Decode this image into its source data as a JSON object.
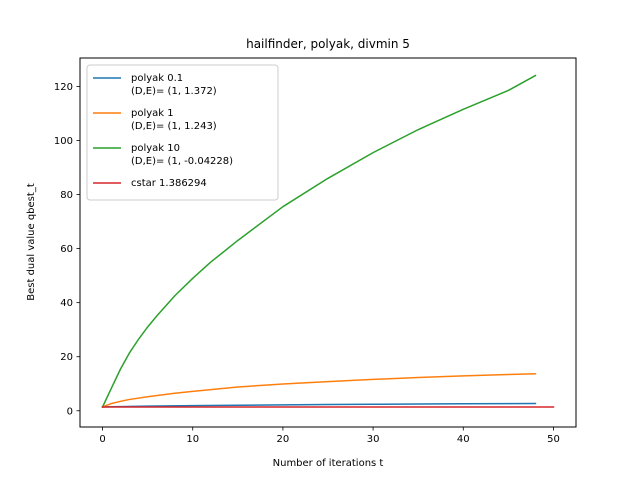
{
  "chart_data": {
    "type": "line",
    "title": "hailfinder, polyak, divmin 5",
    "xlabel": "Number of iterations t",
    "ylabel": "Best dual value qbest_t",
    "xlim": [
      -2.5,
      52.5
    ],
    "ylim": [
      -6.0,
      130.5
    ],
    "xticks": [
      0,
      10,
      20,
      30,
      40,
      50
    ],
    "yticks": [
      0,
      20,
      40,
      60,
      80,
      100,
      120
    ],
    "grid": false,
    "legend_position": "upper-left",
    "series": [
      {
        "name": "polyak 0.1\n(D,E)= (1, 1.372)",
        "color": "#1f77b4",
        "x": [
          0,
          1,
          2,
          5,
          10,
          15,
          20,
          25,
          30,
          35,
          40,
          45,
          48
        ],
        "y": [
          1.4,
          1.47,
          1.54,
          1.71,
          1.91,
          2.06,
          2.19,
          2.3,
          2.4,
          2.49,
          2.58,
          2.66,
          2.7
        ]
      },
      {
        "name": "polyak 1\n(D,E)= (1, 1.243)",
        "color": "#ff7f0e",
        "x": [
          0,
          1,
          2,
          3,
          5,
          8,
          10,
          15,
          20,
          25,
          30,
          35,
          40,
          45,
          48
        ],
        "y": [
          1.4,
          2.7,
          3.5,
          4.2,
          5.2,
          6.5,
          7.2,
          8.8,
          9.9,
          10.8,
          11.6,
          12.3,
          12.9,
          13.4,
          13.7
        ]
      },
      {
        "name": "polyak 10\n(D,E)= (1, -0.04228)",
        "color": "#2ca02c",
        "x": [
          0,
          1,
          2,
          3,
          4,
          5,
          6,
          8,
          10,
          12,
          15,
          20,
          25,
          30,
          35,
          40,
          45,
          48
        ],
        "y": [
          1.4,
          8.5,
          15.5,
          21.5,
          26.5,
          31.0,
          35.0,
          42.5,
          49.0,
          55.0,
          63.0,
          75.5,
          86.0,
          95.5,
          104.0,
          111.5,
          118.5,
          124.0
        ]
      },
      {
        "name": "cstar 1.386294",
        "color": "#d62728",
        "x": [
          0,
          50
        ],
        "y": [
          1.386294,
          1.386294
        ]
      }
    ]
  }
}
